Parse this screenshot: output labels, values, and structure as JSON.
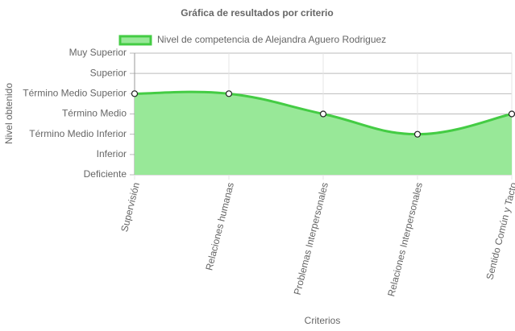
{
  "chart_data": {
    "type": "line",
    "title": "Gráfica de resultados por criterio",
    "x_label": "Criterios",
    "y_label": "Nivel obtenido",
    "categories": [
      "Supervisión",
      "Relaciones humanas",
      "Problemas Interpersonales",
      "Relaciones Interpersonales",
      "Sentido Común y Tacto"
    ],
    "series": [
      {
        "name": "Nivel de competencia de Alejandra Aguero Rodriguez",
        "color": "#44cc44",
        "fill": "#98e898",
        "values": [
          4,
          4,
          3,
          2,
          3
        ]
      }
    ],
    "ylim": [
      0,
      6
    ],
    "yticks": [
      {
        "value": 0,
        "label": "Deficiente"
      },
      {
        "value": 1,
        "label": "Inferior"
      },
      {
        "value": 2,
        "label": "Término Medio Inferior"
      },
      {
        "value": 3,
        "label": "Término Medio"
      },
      {
        "value": 4,
        "label": "Término Medio Superior"
      },
      {
        "value": 5,
        "label": "Superior"
      },
      {
        "value": 6,
        "label": "Muy Superior"
      }
    ],
    "grid": true,
    "legend": "top"
  }
}
